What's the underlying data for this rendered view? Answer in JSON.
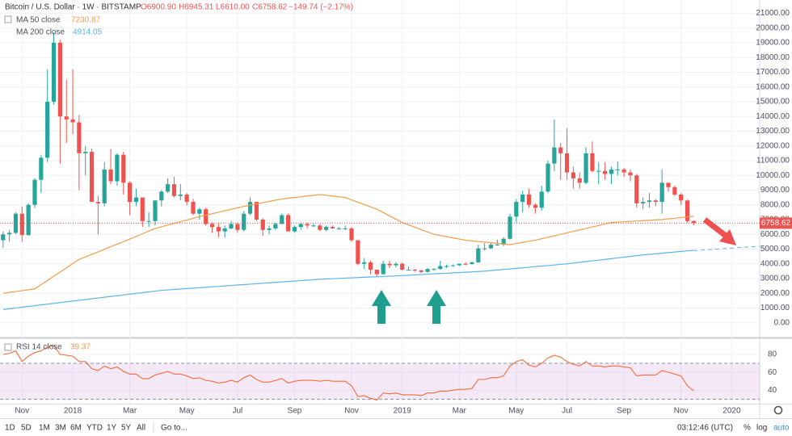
{
  "chart_data": [
    {
      "type": "candlestick",
      "title": "Bitcoin / U.S. Dollar · 1W · BITSTAMP",
      "ohlc_labels": [
        "O6900.90",
        "H6945.31",
        "L6610.00",
        "C6758.62",
        "−149.74 (−2.17%)"
      ],
      "last_price_label": "6758.62",
      "up_color": "#26a69a",
      "down_color": "#ef5350",
      "ylim": [
        -1000,
        21900
      ],
      "yticks": [
        {
          "value": 0,
          "label": "0.00"
        },
        {
          "value": 1000,
          "label": "1000.00"
        },
        {
          "value": 2000,
          "label": "2000.00"
        },
        {
          "value": 3000,
          "label": "3000.00"
        },
        {
          "value": 4000,
          "label": "4000.00"
        },
        {
          "value": 5000,
          "label": "5000.00"
        },
        {
          "value": 6000,
          "label": "6000.00"
        },
        {
          "value": 7000,
          "label": "7000.00"
        },
        {
          "value": 8000,
          "label": "8000.00"
        },
        {
          "value": 9000,
          "label": "9000.00"
        },
        {
          "value": 10000,
          "label": "10000.00"
        },
        {
          "value": 11000,
          "label": "11000.00"
        },
        {
          "value": 12000,
          "label": "12000.00"
        },
        {
          "value": 13000,
          "label": "13000.00"
        },
        {
          "value": 14000,
          "label": "14000.00"
        },
        {
          "value": 15000,
          "label": "15000.00"
        },
        {
          "value": 16000,
          "label": "16000.00"
        },
        {
          "value": 17000,
          "label": "17000.00"
        },
        {
          "value": 18000,
          "label": "18000.00"
        },
        {
          "value": 19000,
          "label": "19000.00"
        },
        {
          "value": 20000,
          "label": "20000.00"
        },
        {
          "value": 21000,
          "label": "21000.00"
        }
      ],
      "grid": true,
      "categories": [
        null,
        null,
        null,
        "Nov",
        null,
        null,
        null,
        null,
        null,
        null,
        null,
        "2018",
        null,
        null,
        null,
        null,
        null,
        null,
        null,
        null,
        "Mar",
        null,
        null,
        null,
        null,
        null,
        null,
        null,
        null,
        "May",
        null,
        null,
        null,
        null,
        null,
        null,
        null,
        "Jul",
        null,
        null,
        null,
        null,
        null,
        null,
        null,
        null,
        "Sep",
        null,
        null,
        null,
        null,
        null,
        null,
        null,
        null,
        "Nov",
        null,
        null,
        null,
        null,
        null,
        null,
        null,
        "2019",
        null,
        null,
        null,
        null,
        null,
        null,
        null,
        null,
        "Mar",
        null,
        null,
        null,
        null,
        null,
        null,
        null,
        null,
        "May",
        null,
        null,
        null,
        null,
        null,
        null,
        null,
        "Jul",
        null,
        null,
        null,
        null,
        null,
        null,
        null,
        null,
        "Sep",
        null,
        null,
        null,
        null,
        null,
        null,
        null,
        null,
        "Nov",
        null,
        null,
        null,
        null,
        null,
        null,
        null,
        "2020"
      ],
      "open": [
        5600,
        6000,
        6100,
        7400,
        5950,
        8000,
        9700,
        11200,
        15000,
        19000,
        14000,
        13800,
        13600,
        11500,
        11600,
        8200,
        8100,
        10400,
        9600,
        11400,
        9500,
        8200,
        8500,
        6900,
        6900,
        8300,
        8900,
        9400,
        8600,
        8700,
        8200,
        7400,
        7700,
        6700,
        6500,
        6200,
        6400,
        6700,
        6300,
        7400,
        8200,
        7000,
        6300,
        6400,
        6700,
        7300,
        6200,
        6500,
        6700,
        6600,
        6600,
        6300,
        6500,
        6400,
        6400,
        6400,
        5600,
        4000,
        4100,
        3600,
        3300,
        4000,
        3900,
        4000,
        3600,
        3600,
        3550,
        3450,
        3650,
        3650,
        3850,
        3850,
        3900,
        4000,
        3980,
        4100,
        5050,
        5050,
        5300,
        5300,
        5700,
        7200,
        8200,
        8700,
        8000,
        7800,
        8900,
        10800,
        11900,
        11500,
        10200,
        9800,
        9500,
        11500,
        10300,
        10300,
        10100,
        10400,
        10400,
        10200,
        10000,
        8100,
        8200,
        8300,
        8200,
        9500,
        9200,
        8700,
        8300,
        6900.9,
        null,
        null,
        null,
        null,
        null,
        null
      ],
      "high": [
        6200,
        6300,
        7500,
        7900,
        8100,
        9800,
        11400,
        17200,
        19700,
        19200,
        16500,
        17200,
        14100,
        12000,
        11800,
        8600,
        10900,
        11800,
        11500,
        11600,
        9600,
        9100,
        8500,
        7500,
        8300,
        9000,
        9800,
        9900,
        9400,
        8800,
        8400,
        7800,
        7800,
        6800,
        6800,
        6600,
        6900,
        6800,
        7600,
        8500,
        8200,
        7100,
        6600,
        6800,
        7400,
        7400,
        6600,
        6800,
        6800,
        6700,
        6700,
        6600,
        6600,
        6500,
        6600,
        6500,
        5600,
        4400,
        4200,
        3600,
        4200,
        4200,
        4100,
        4100,
        3800,
        3650,
        3600,
        3700,
        3700,
        4200,
        3950,
        3950,
        4000,
        4100,
        4150,
        5300,
        5400,
        5450,
        5650,
        5800,
        7400,
        8400,
        8950,
        9100,
        8100,
        9300,
        11000,
        13800,
        12200,
        13200,
        10600,
        10200,
        11900,
        12300,
        10900,
        10900,
        10600,
        10950,
        10500,
        10400,
        10100,
        8500,
        8800,
        8400,
        10400,
        9500,
        9300,
        8800,
        8350,
        6945.31,
        null,
        null,
        null,
        null,
        null,
        null
      ],
      "low": [
        5100,
        5500,
        6000,
        5500,
        5900,
        7800,
        8800,
        10900,
        14800,
        10800,
        12200,
        12800,
        9000,
        10000,
        8200,
        6000,
        7900,
        9400,
        9300,
        8700,
        7300,
        7900,
        6500,
        6500,
        6600,
        7900,
        8800,
        8500,
        8300,
        7950,
        7300,
        7000,
        6600,
        6100,
        5800,
        5800,
        6350,
        6100,
        6200,
        7300,
        6900,
        5900,
        6000,
        6300,
        6700,
        6200,
        6100,
        6300,
        6400,
        6500,
        6200,
        6200,
        6400,
        6300,
        6300,
        5500,
        3900,
        3650,
        3300,
        3150,
        3250,
        3700,
        3750,
        3550,
        3550,
        3450,
        3350,
        3400,
        3550,
        3600,
        3700,
        3800,
        3850,
        3900,
        3950,
        4050,
        4900,
        5000,
        5250,
        5200,
        5650,
        6800,
        7500,
        7800,
        7400,
        7600,
        8800,
        10300,
        9700,
        9700,
        9100,
        9100,
        9400,
        10200,
        9400,
        9700,
        9400,
        10000,
        9900,
        9600,
        7800,
        7700,
        7800,
        7900,
        7400,
        8900,
        8600,
        8000,
        6800,
        6610,
        null,
        null,
        null,
        null,
        null,
        null
      ],
      "close": [
        6000,
        6100,
        7400,
        5950,
        8000,
        9700,
        11200,
        15000,
        19000,
        14000,
        13800,
        13600,
        11500,
        11600,
        8200,
        8100,
        10400,
        9600,
        11400,
        9500,
        8200,
        8500,
        6900,
        6900,
        8300,
        8900,
        9400,
        8600,
        8700,
        8200,
        7400,
        7700,
        6700,
        6500,
        6200,
        6400,
        6700,
        6300,
        7400,
        8200,
        7000,
        6300,
        6400,
        6700,
        7300,
        6200,
        6500,
        6700,
        6600,
        6600,
        6300,
        6500,
        6400,
        6400,
        6400,
        5600,
        4000,
        4100,
        3600,
        3300,
        4000,
        3900,
        4000,
        3600,
        3600,
        3550,
        3450,
        3650,
        3650,
        3850,
        3850,
        3900,
        4000,
        3980,
        4100,
        5050,
        5050,
        5300,
        5300,
        5700,
        7200,
        8200,
        8700,
        8000,
        7800,
        8900,
        10800,
        11900,
        11500,
        10200,
        9800,
        9500,
        11500,
        10300,
        10300,
        10100,
        10400,
        10400,
        10200,
        10000,
        8100,
        8200,
        8300,
        8200,
        9500,
        9200,
        8700,
        8300,
        6900.9,
        6758.62,
        null,
        null,
        null,
        null,
        null,
        null
      ],
      "series": [
        {
          "name": "MA 50 close",
          "value_label": "7230.87",
          "color": "#f39c4a",
          "values": [
            2000,
            2060,
            2120,
            2180,
            2240,
            2300,
            2590,
            2870,
            3160,
            3440,
            3730,
            4010,
            4300,
            4470,
            4640,
            4810,
            4990,
            5160,
            5330,
            5500,
            5680,
            5860,
            6040,
            6220,
            6400,
            6510,
            6630,
            6740,
            6860,
            6970,
            7090,
            7200,
            7300,
            7400,
            7500,
            7600,
            7700,
            7800,
            7900,
            7980,
            8070,
            8150,
            8230,
            8320,
            8400,
            8450,
            8500,
            8550,
            8600,
            8650,
            8700,
            8650,
            8600,
            8550,
            8500,
            8340,
            8180,
            8020,
            7860,
            7700,
            7480,
            7250,
            7030,
            6800,
            6640,
            6480,
            6320,
            6160,
            6000,
            5920,
            5840,
            5760,
            5680,
            5600,
            5560,
            5510,
            5470,
            5430,
            5390,
            5340,
            5300,
            5380,
            5450,
            5530,
            5600,
            5700,
            5800,
            5900,
            6000,
            6100,
            6200,
            6300,
            6400,
            6500,
            6600,
            6700,
            6800,
            6830,
            6850,
            6880,
            6900,
            6930,
            6950,
            6980,
            7000,
            7050,
            7090,
            7140,
            7180,
            7230.87,
            null,
            null,
            null,
            null,
            null,
            null
          ]
        },
        {
          "name": "MA 200 close",
          "value_label": "4914.05",
          "color": "#5bb4e5",
          "values": [
            900,
            952,
            1004,
            1056,
            1108,
            1160,
            1212,
            1264,
            1316,
            1368,
            1420,
            1472,
            1524,
            1576,
            1628,
            1680,
            1732,
            1784,
            1836,
            1888,
            1940,
            1992,
            2044,
            2096,
            2148,
            2200,
            2230,
            2260,
            2290,
            2320,
            2350,
            2380,
            2410,
            2440,
            2470,
            2500,
            2530,
            2560,
            2590,
            2620,
            2650,
            2680,
            2710,
            2740,
            2770,
            2800,
            2830,
            2860,
            2890,
            2920,
            2950,
            2970,
            2990,
            3010,
            3030,
            3050,
            3070,
            3090,
            3110,
            3120,
            3140,
            3160,
            3180,
            3200,
            3220,
            3250,
            3270,
            3290,
            3320,
            3340,
            3360,
            3390,
            3410,
            3430,
            3450,
            3480,
            3500,
            3540,
            3580,
            3620,
            3650,
            3690,
            3730,
            3770,
            3810,
            3850,
            3880,
            3920,
            3960,
            4000,
            4050,
            4100,
            4150,
            4200,
            4250,
            4300,
            4350,
            4400,
            4450,
            4500,
            4550,
            4600,
            4640,
            4680,
            4720,
            4760,
            4800,
            4840,
            4880,
            4914.05,
            null,
            null,
            null,
            null,
            null,
            null
          ]
        }
      ]
    },
    {
      "type": "line",
      "title": "RSI 14 close",
      "value_label": "39.37",
      "color": "#f26b38",
      "ylim": [
        25,
        97
      ],
      "yticks": [
        40,
        60,
        80
      ],
      "levels": [
        30,
        70
      ],
      "values": [
        80,
        81,
        84,
        72,
        78,
        82,
        84,
        88,
        90,
        80,
        79,
        78,
        72,
        72,
        64,
        62,
        67,
        64,
        66,
        61,
        58,
        58,
        53,
        53,
        57,
        59,
        61,
        58,
        58,
        56,
        53,
        54,
        51,
        50,
        48,
        49,
        51,
        49,
        54,
        57,
        52,
        49,
        49,
        51,
        53,
        48,
        50,
        51,
        51,
        51,
        50,
        51,
        50,
        50,
        50,
        45,
        33,
        34,
        31,
        29,
        37,
        36,
        37,
        35,
        35,
        35,
        34,
        37,
        37,
        39,
        39,
        40,
        41,
        41,
        42,
        52,
        52,
        54,
        54,
        56,
        67,
        72,
        74,
        68,
        66,
        70,
        76,
        79,
        77,
        72,
        69,
        67,
        72,
        67,
        67,
        66,
        67,
        67,
        66,
        65,
        56,
        57,
        57,
        57,
        62,
        60,
        58,
        56,
        45,
        39.37,
        null,
        null,
        null,
        null,
        null,
        null
      ]
    }
  ],
  "toolbar": {
    "ranges": [
      "1D",
      "5D",
      "1M",
      "3M",
      "6M",
      "YTD",
      "1Y",
      "5Y",
      "All"
    ],
    "goto": "Go to...",
    "time": "03:12:46 (UTC)",
    "options": [
      "%",
      "log",
      "auto"
    ]
  }
}
